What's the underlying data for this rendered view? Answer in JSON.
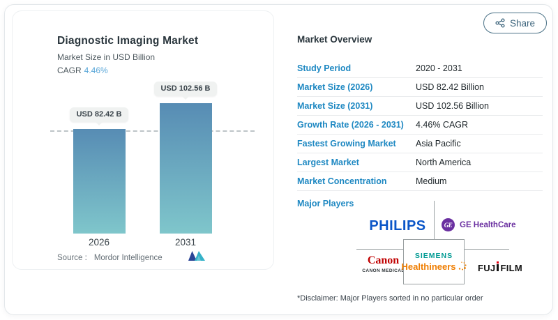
{
  "share_button": {
    "label": "Share"
  },
  "chart": {
    "title": "Diagnostic Imaging Market",
    "subtitle": "Market Size in USD Billion",
    "cagr_label": "CAGR",
    "cagr_value": "4.46%",
    "source_label": "Source :",
    "source_value": "Mordor Intelligence",
    "bars": [
      {
        "year": "2026",
        "value_label": "USD 82.42 B"
      },
      {
        "year": "2031",
        "value_label": "USD 102.56 B"
      }
    ]
  },
  "chart_data": {
    "type": "bar",
    "title": "Diagnostic Imaging Market",
    "subtitle": "Market Size in USD Billion",
    "categories": [
      "2026",
      "2031"
    ],
    "values": [
      82.42,
      102.56
    ],
    "unit": "USD Billion",
    "data_labels": [
      "USD 82.42 B",
      "USD 102.56 B"
    ],
    "cagr_percent": 4.46,
    "reference_line": 82.42,
    "grid": false,
    "legend": "none",
    "source": "Mordor Intelligence"
  },
  "overview": {
    "title": "Market Overview",
    "rows": [
      {
        "label": "Study Period",
        "value": "2020 - 2031"
      },
      {
        "label": "Market Size (2026)",
        "value": "USD 82.42 Billion"
      },
      {
        "label": "Market Size (2031)",
        "value": "USD 102.56 Billion"
      },
      {
        "label": "Growth Rate (2026 - 2031)",
        "value": "4.46% CAGR"
      },
      {
        "label": "Fastest Growing Market",
        "value": "Asia Pacific"
      },
      {
        "label": "Largest Market",
        "value": "North America"
      },
      {
        "label": "Market Concentration",
        "value": "Medium"
      }
    ],
    "major_players_label": "Major Players",
    "disclaimer": "*Disclaimer: Major Players sorted in no particular order",
    "players": {
      "philips": "PHILIPS",
      "ge_monogram": "GE",
      "ge_name": "GE HealthCare",
      "canon_name": "Canon",
      "canon_sub": "CANON MEDICAL",
      "siemens_top": "SIEMENS",
      "siemens_bottom": "Healthineers",
      "fujifilm_pre": "FUJ",
      "fujifilm_post": "FILM"
    }
  },
  "colors": {
    "accent_blue": "#1e88c2",
    "cagr_blue": "#58a6d8",
    "bar_gradient_top": "#578cb4",
    "bar_gradient_bottom": "#7fc6cb",
    "philips_blue": "#0b56c8",
    "ge_purple": "#6a2fa0",
    "canon_red": "#c00000",
    "siemens_teal": "#009a93",
    "healthineers_orange": "#ef7d00",
    "fujifilm_black": "#111111",
    "fujifilm_dot_red": "#e60012"
  }
}
